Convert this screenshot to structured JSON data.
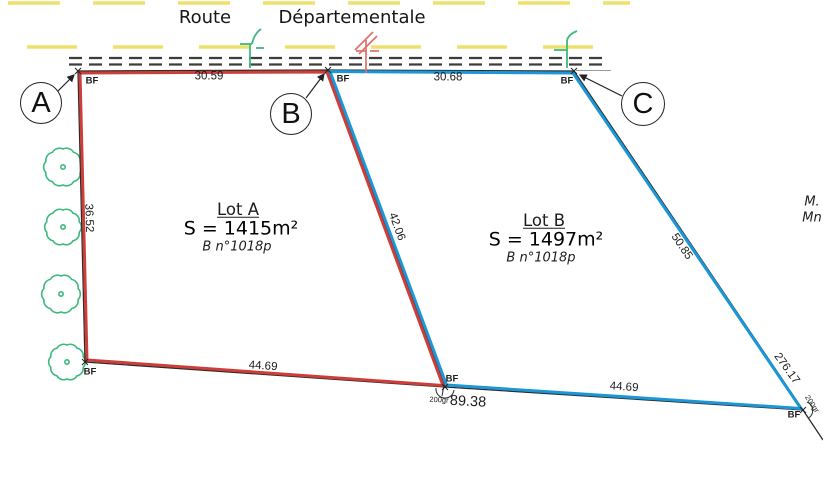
{
  "road": {
    "word_1": "Route",
    "word_2": "Départementale"
  },
  "points": {
    "a": "A",
    "b": "B",
    "c": "C"
  },
  "bf_label": "BF",
  "lots": {
    "a": {
      "name": "Lot A",
      "area": "S = 1415m²",
      "parcel": "B n°1018p"
    },
    "b": {
      "name": "Lot B",
      "area": "S = 1497m²",
      "parcel": "B n°1018p"
    }
  },
  "measurements": {
    "ab": "30.59",
    "bc": "30.68",
    "a_left_side": "36.52",
    "ab_shared_diagonal": "42.06",
    "bottom_lot_a": "44.69",
    "bottom_lot_b": "44.69",
    "bottom_total": "89.38",
    "c_diagonal": "50.85",
    "alignment_extension": "276.17"
  },
  "angles": {
    "bottom_mid_vertex": "200gr",
    "bottom_right_vertex": "200gr"
  },
  "margin_notes": {
    "line_1": "M.",
    "line_2": "Mn"
  },
  "colors": {
    "lot_a_stroke": "#cd3e3a",
    "lot_b_stroke": "#1b96d6",
    "vegetation_green": "#3dba7e",
    "road_axis_yellow": "#eee06a",
    "boundary_black": "#2a2a2a",
    "pole_red": "#e0706a"
  }
}
